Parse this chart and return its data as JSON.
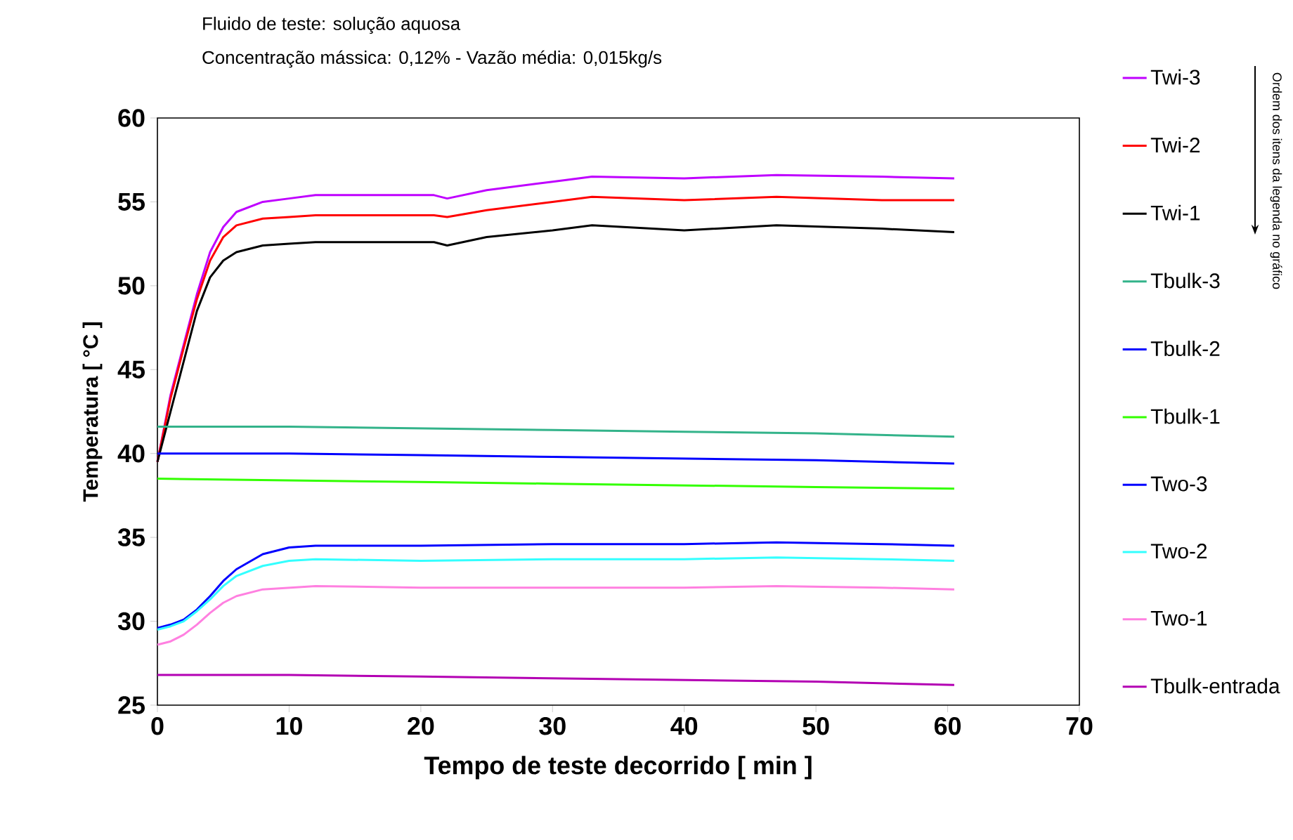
{
  "chart_data": {
    "type": "line",
    "title": "Fluido de teste: solução aquosa",
    "subtitle": "Concentração mássica: 0,12% - Vazão média:  0,015kg/s",
    "xlabel": "Tempo de teste decorrido [ min ]",
    "ylabel": "Temperatura [ °C ]",
    "annotations": [
      "Ordem dos itens da legenda no gráfico"
    ],
    "xlim": [
      0,
      70
    ],
    "ylim": [
      25,
      60
    ],
    "xticks": [
      0,
      10,
      20,
      30,
      40,
      50,
      60,
      70
    ],
    "yticks": [
      25,
      30,
      35,
      40,
      45,
      50,
      55,
      60
    ],
    "grid": false,
    "legend": "right",
    "line_style": "solid",
    "marker": "none",
    "series": [
      {
        "name": "Twi-3",
        "color": "#bf00ff",
        "x": [
          0,
          1,
          2,
          3,
          4,
          5,
          6,
          8,
          10,
          12,
          15,
          21,
          22,
          25,
          30,
          33,
          40,
          47,
          55,
          60.5
        ],
        "values": [
          39.5,
          43.5,
          46.5,
          49.5,
          52,
          53.5,
          54.4,
          55.0,
          55.2,
          55.4,
          55.4,
          55.4,
          55.2,
          55.7,
          56.2,
          56.5,
          56.4,
          56.6,
          56.5,
          56.4
        ]
      },
      {
        "name": "Twi-2",
        "color": "#ff0000",
        "x": [
          0,
          1,
          2,
          3,
          4,
          5,
          6,
          8,
          10,
          12,
          15,
          21,
          22,
          25,
          30,
          33,
          40,
          47,
          55,
          60.5
        ],
        "values": [
          39.5,
          43.3,
          46.3,
          49.2,
          51.5,
          52.9,
          53.6,
          54.0,
          54.1,
          54.2,
          54.2,
          54.2,
          54.1,
          54.5,
          55.0,
          55.3,
          55.1,
          55.3,
          55.1,
          55.1
        ]
      },
      {
        "name": "Twi-1",
        "color": "#000000",
        "x": [
          0,
          1,
          2,
          3,
          4,
          5,
          6,
          8,
          10,
          12,
          15,
          21,
          22,
          25,
          30,
          33,
          40,
          47,
          55,
          60.5
        ],
        "values": [
          39.5,
          42.5,
          45.5,
          48.5,
          50.5,
          51.5,
          52.0,
          52.4,
          52.5,
          52.6,
          52.6,
          52.6,
          52.4,
          52.9,
          53.3,
          53.6,
          53.3,
          53.6,
          53.4,
          53.2
        ]
      },
      {
        "name": "Tbulk-3",
        "color": "#33b38a",
        "x": [
          0,
          10,
          20,
          30,
          40,
          50,
          60.5
        ],
        "values": [
          41.6,
          41.6,
          41.5,
          41.4,
          41.3,
          41.2,
          41.0
        ]
      },
      {
        "name": "Tbulk-2",
        "color": "#0000ff",
        "x": [
          0,
          10,
          20,
          30,
          40,
          50,
          60.5
        ],
        "values": [
          40.0,
          40.0,
          39.9,
          39.8,
          39.7,
          39.6,
          39.4
        ]
      },
      {
        "name": "Tbulk-1",
        "color": "#33ff00",
        "x": [
          0,
          10,
          20,
          30,
          40,
          50,
          60.5
        ],
        "values": [
          38.5,
          38.4,
          38.3,
          38.2,
          38.1,
          38.0,
          37.9
        ]
      },
      {
        "name": "Two-3",
        "color": "#0000ff",
        "x": [
          0,
          1,
          2,
          3,
          4,
          5,
          6,
          8,
          10,
          12,
          20,
          30,
          40,
          47,
          55,
          60.5
        ],
        "values": [
          29.6,
          29.8,
          30.1,
          30.7,
          31.5,
          32.4,
          33.1,
          34.0,
          34.4,
          34.5,
          34.5,
          34.6,
          34.6,
          34.7,
          34.6,
          34.5
        ]
      },
      {
        "name": "Two-2",
        "color": "#33ffff",
        "x": [
          0,
          1,
          2,
          3,
          4,
          5,
          6,
          8,
          10,
          12,
          20,
          30,
          40,
          47,
          55,
          60.5
        ],
        "values": [
          29.5,
          29.7,
          30.0,
          30.6,
          31.3,
          32.1,
          32.7,
          33.3,
          33.6,
          33.7,
          33.6,
          33.7,
          33.7,
          33.8,
          33.7,
          33.6
        ]
      },
      {
        "name": "Two-1",
        "color": "#ff80e0",
        "x": [
          0,
          1,
          2,
          3,
          4,
          5,
          6,
          8,
          10,
          12,
          20,
          30,
          40,
          47,
          55,
          60.5
        ],
        "values": [
          28.6,
          28.8,
          29.2,
          29.8,
          30.5,
          31.1,
          31.5,
          31.9,
          32.0,
          32.1,
          32.0,
          32.0,
          32.0,
          32.1,
          32.0,
          31.9
        ]
      },
      {
        "name": "Tbulk-entrada",
        "color": "#b300b3",
        "x": [
          0,
          10,
          20,
          30,
          40,
          50,
          60.5
        ],
        "values": [
          26.8,
          26.8,
          26.7,
          26.6,
          26.5,
          26.4,
          26.2
        ]
      }
    ]
  }
}
